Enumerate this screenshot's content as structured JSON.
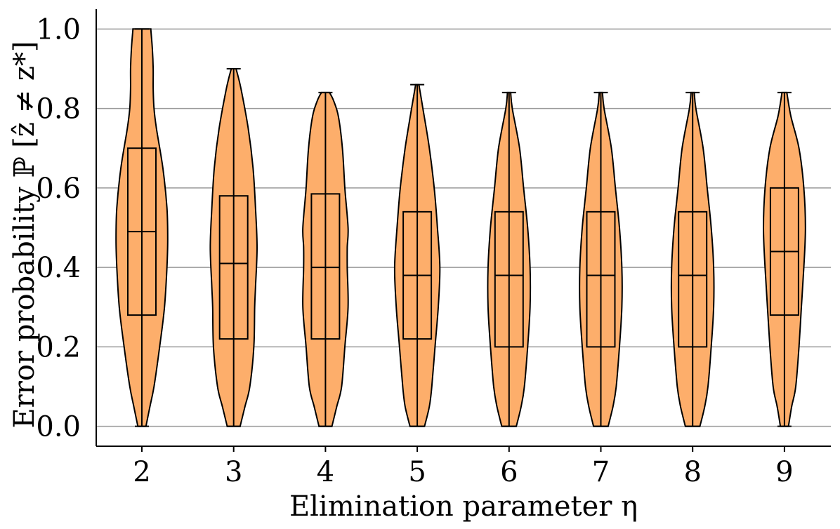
{
  "chart_data": {
    "type": "violin",
    "xlabel": "Elimination parameter η",
    "ylabel": "Error probability ℙ [ẑ ≠ z*]",
    "ylim": [
      -0.05,
      1.05
    ],
    "yticks": [
      0.0,
      0.2,
      0.4,
      0.6,
      0.8,
      1.0
    ],
    "ytick_labels": [
      "0.0",
      "0.2",
      "0.4",
      "0.6",
      "0.8",
      "1.0"
    ],
    "grid": "horizontal",
    "colors": {
      "fill": "#fdae6b",
      "stroke": "#000000",
      "grid": "#9a9a9a"
    },
    "groups": [
      {
        "label": "2",
        "min": 0.0,
        "q1": 0.28,
        "median": 0.49,
        "q3": 0.7,
        "max": 1.0,
        "density": [
          [
            0.0,
            0.025
          ],
          [
            0.05,
            0.05
          ],
          [
            0.1,
            0.075
          ],
          [
            0.2,
            0.11
          ],
          [
            0.3,
            0.14
          ],
          [
            0.4,
            0.155
          ],
          [
            0.47,
            0.16
          ],
          [
            0.55,
            0.155
          ],
          [
            0.65,
            0.13
          ],
          [
            0.75,
            0.09
          ],
          [
            0.8,
            0.075
          ],
          [
            0.85,
            0.07
          ],
          [
            0.9,
            0.07
          ],
          [
            0.95,
            0.065
          ],
          [
            1.0,
            0.055
          ]
        ]
      },
      {
        "label": "3",
        "min": 0.0,
        "q1": 0.22,
        "median": 0.41,
        "q3": 0.58,
        "max": 0.9,
        "density": [
          [
            0.0,
            0.04
          ],
          [
            0.05,
            0.07
          ],
          [
            0.1,
            0.1
          ],
          [
            0.2,
            0.125
          ],
          [
            0.3,
            0.13
          ],
          [
            0.35,
            0.135
          ],
          [
            0.45,
            0.145
          ],
          [
            0.55,
            0.135
          ],
          [
            0.65,
            0.12
          ],
          [
            0.75,
            0.09
          ],
          [
            0.85,
            0.045
          ],
          [
            0.9,
            0.015
          ]
        ]
      },
      {
        "label": "4",
        "min": 0.0,
        "q1": 0.22,
        "median": 0.4,
        "q3": 0.585,
        "max": 0.84,
        "density": [
          [
            0.0,
            0.04
          ],
          [
            0.05,
            0.07
          ],
          [
            0.1,
            0.1
          ],
          [
            0.2,
            0.12
          ],
          [
            0.3,
            0.14
          ],
          [
            0.4,
            0.135
          ],
          [
            0.45,
            0.135
          ],
          [
            0.5,
            0.14
          ],
          [
            0.6,
            0.12
          ],
          [
            0.7,
            0.105
          ],
          [
            0.78,
            0.08
          ],
          [
            0.82,
            0.05
          ],
          [
            0.84,
            0.025
          ]
        ]
      },
      {
        "label": "5",
        "min": 0.0,
        "q1": 0.22,
        "median": 0.38,
        "q3": 0.54,
        "max": 0.86,
        "density": [
          [
            0.0,
            0.045
          ],
          [
            0.05,
            0.075
          ],
          [
            0.1,
            0.09
          ],
          [
            0.2,
            0.11
          ],
          [
            0.3,
            0.13
          ],
          [
            0.4,
            0.14
          ],
          [
            0.5,
            0.125
          ],
          [
            0.6,
            0.105
          ],
          [
            0.7,
            0.075
          ],
          [
            0.8,
            0.035
          ],
          [
            0.86,
            0.01
          ]
        ]
      },
      {
        "label": "6",
        "min": 0.0,
        "q1": 0.2,
        "median": 0.38,
        "q3": 0.54,
        "max": 0.84,
        "density": [
          [
            0.0,
            0.045
          ],
          [
            0.05,
            0.075
          ],
          [
            0.1,
            0.095
          ],
          [
            0.2,
            0.115
          ],
          [
            0.3,
            0.13
          ],
          [
            0.4,
            0.13
          ],
          [
            0.5,
            0.115
          ],
          [
            0.6,
            0.09
          ],
          [
            0.7,
            0.065
          ],
          [
            0.8,
            0.02
          ],
          [
            0.84,
            0.01
          ]
        ]
      },
      {
        "label": "7",
        "min": 0.0,
        "q1": 0.2,
        "median": 0.38,
        "q3": 0.54,
        "max": 0.84,
        "density": [
          [
            0.0,
            0.045
          ],
          [
            0.05,
            0.075
          ],
          [
            0.1,
            0.095
          ],
          [
            0.2,
            0.115
          ],
          [
            0.3,
            0.13
          ],
          [
            0.4,
            0.13
          ],
          [
            0.5,
            0.115
          ],
          [
            0.6,
            0.09
          ],
          [
            0.7,
            0.065
          ],
          [
            0.8,
            0.02
          ],
          [
            0.84,
            0.01
          ]
        ]
      },
      {
        "label": "8",
        "min": 0.0,
        "q1": 0.2,
        "median": 0.38,
        "q3": 0.54,
        "max": 0.84,
        "density": [
          [
            0.0,
            0.045
          ],
          [
            0.05,
            0.075
          ],
          [
            0.1,
            0.095
          ],
          [
            0.2,
            0.115
          ],
          [
            0.3,
            0.13
          ],
          [
            0.4,
            0.13
          ],
          [
            0.5,
            0.115
          ],
          [
            0.6,
            0.09
          ],
          [
            0.7,
            0.065
          ],
          [
            0.8,
            0.02
          ],
          [
            0.84,
            0.01
          ]
        ]
      },
      {
        "label": "9",
        "min": 0.0,
        "q1": 0.28,
        "median": 0.44,
        "q3": 0.6,
        "max": 0.84,
        "density": [
          [
            0.0,
            0.025
          ],
          [
            0.05,
            0.045
          ],
          [
            0.1,
            0.07
          ],
          [
            0.2,
            0.09
          ],
          [
            0.3,
            0.105
          ],
          [
            0.4,
            0.12
          ],
          [
            0.5,
            0.13
          ],
          [
            0.6,
            0.12
          ],
          [
            0.7,
            0.09
          ],
          [
            0.78,
            0.04
          ],
          [
            0.84,
            0.015
          ]
        ]
      }
    ]
  }
}
